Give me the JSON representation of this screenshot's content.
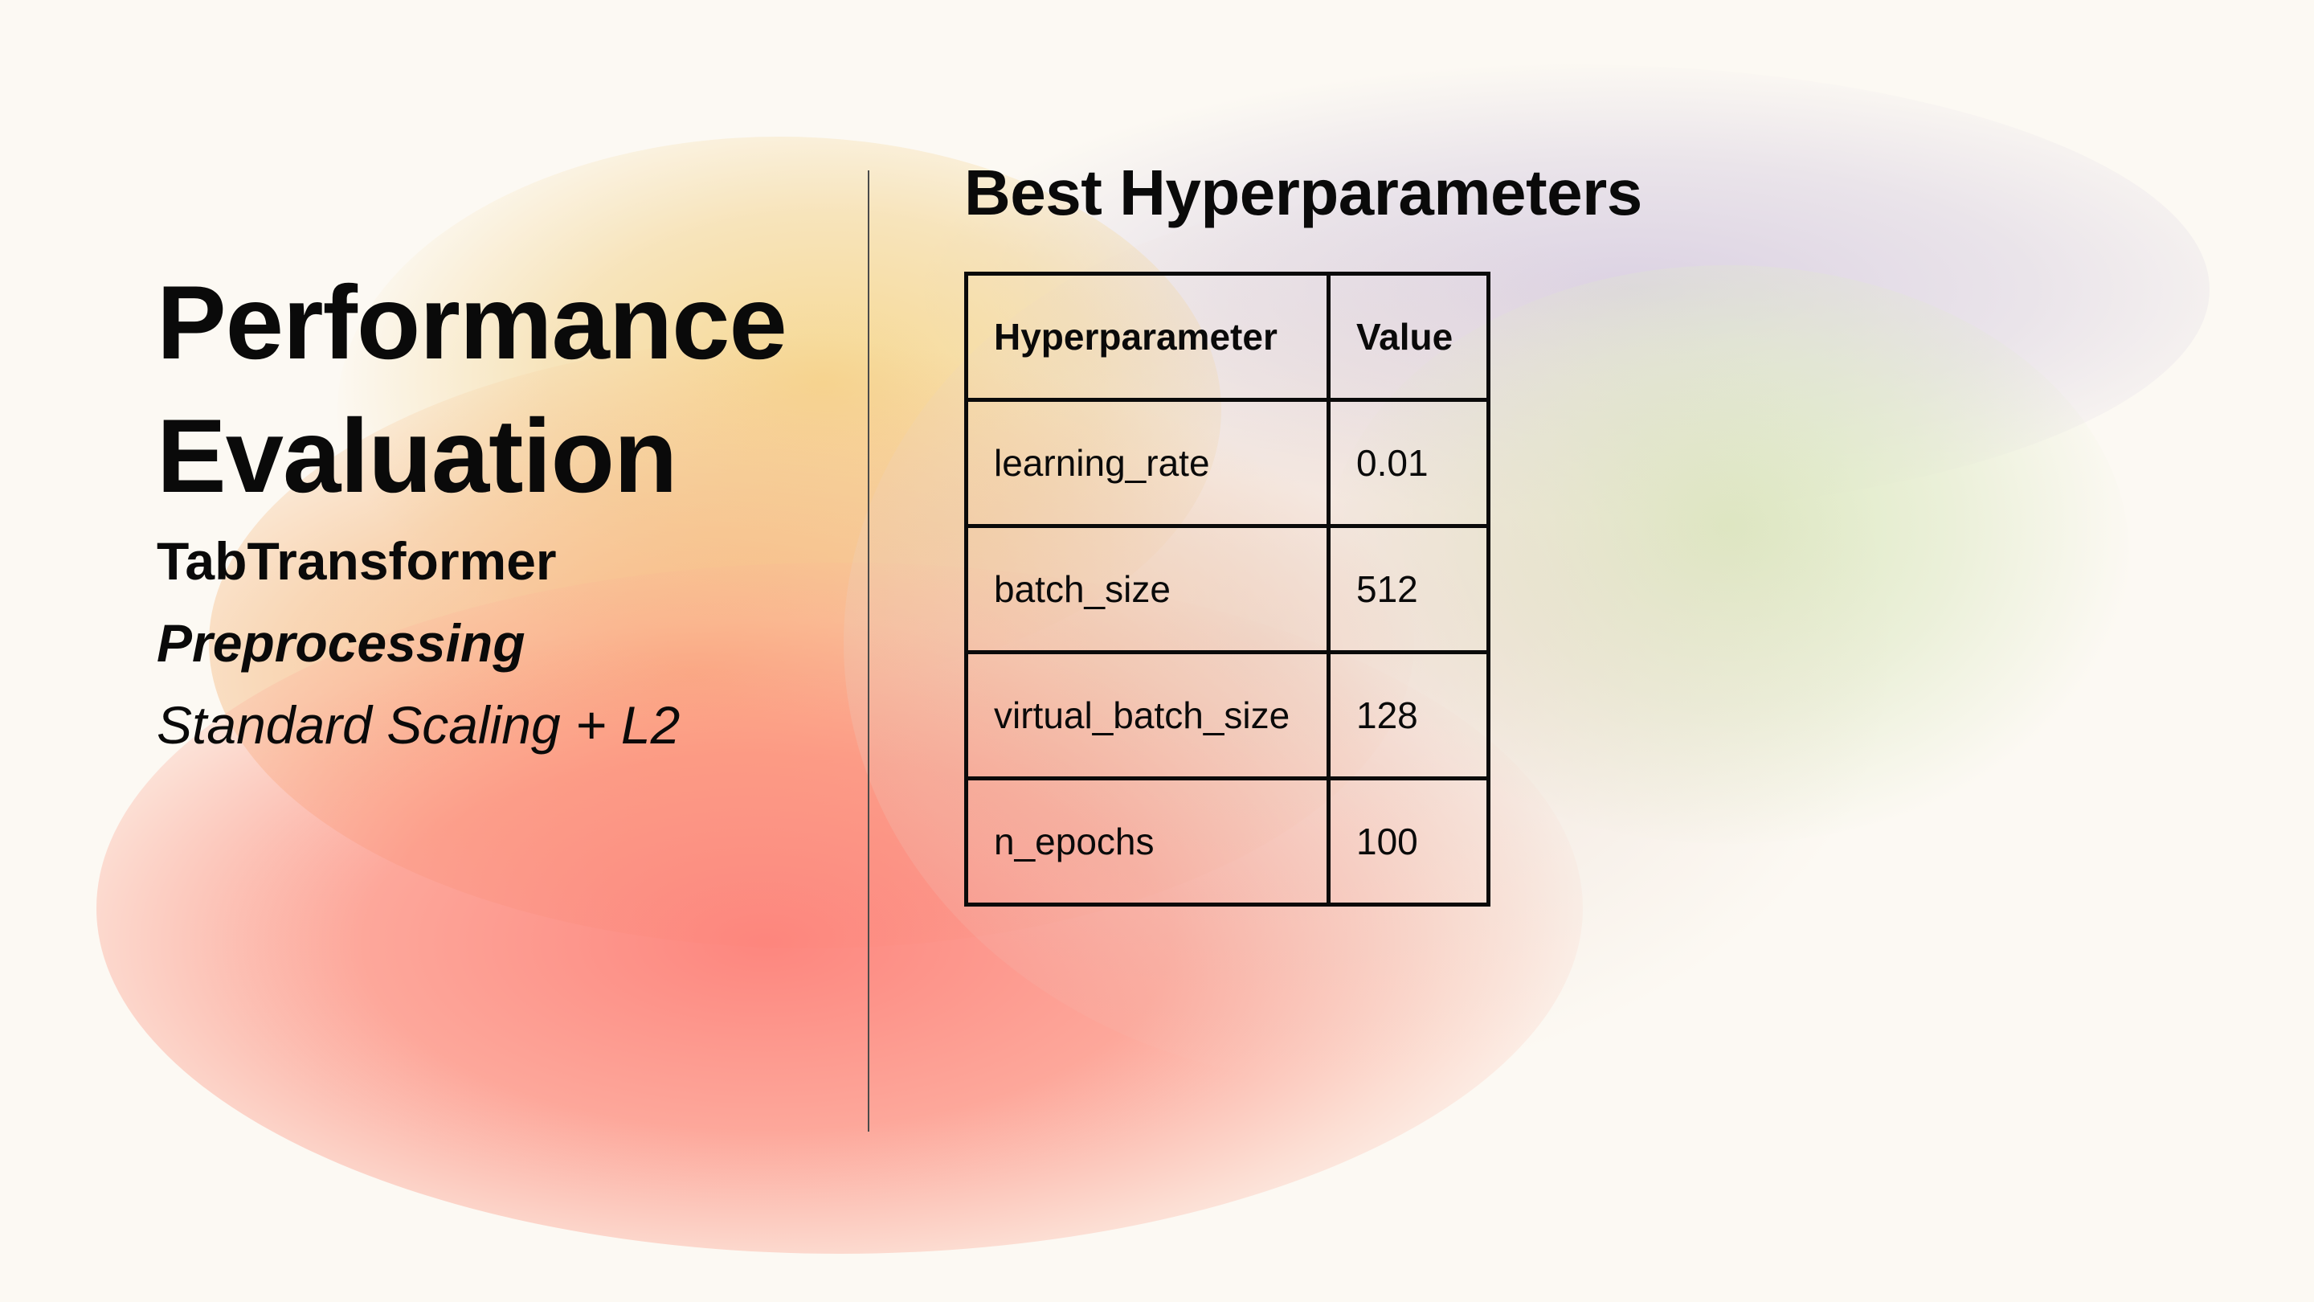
{
  "slide": {
    "title_line1": "Performance",
    "title_line2": "Evaluation",
    "model_name": "TabTransformer",
    "preprocessing_label": "Preprocessing",
    "preprocessing_value": "Standard Scaling + L2"
  },
  "hyperparameters": {
    "title": "Best Hyperparameters",
    "columns": [
      "Hyperparameter",
      "Value"
    ],
    "rows": [
      {
        "name": "learning_rate",
        "value": "0.01"
      },
      {
        "name": "batch_size",
        "value": "512"
      },
      {
        "name": "virtual_batch_size",
        "value": "128"
      },
      {
        "name": "n_epochs",
        "value": "100"
      }
    ]
  },
  "colors": {
    "background": "#fcf9f3",
    "text": "#0a0a0a",
    "gradient_red": "#fd8078",
    "gradient_orange": "#f8aa6e",
    "gradient_yellow": "#f6d68c",
    "gradient_purple": "#dad0e2",
    "gradient_green": "#dae8be"
  }
}
